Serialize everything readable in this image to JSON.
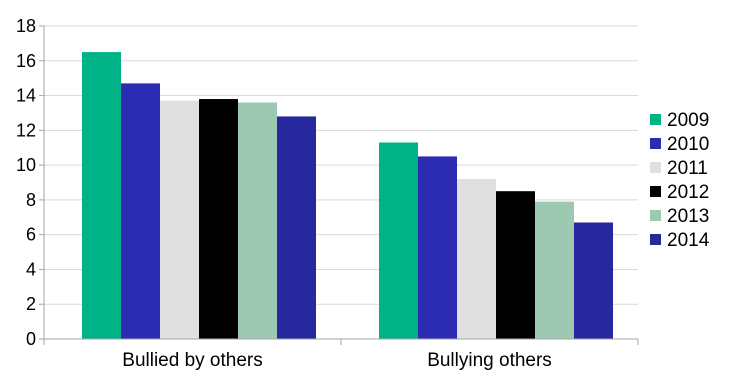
{
  "chart_data": {
    "type": "bar",
    "title": "",
    "xlabel": "",
    "ylabel": "",
    "categories": [
      "Bullied by others",
      "Bullying others"
    ],
    "series": [
      {
        "name": "2009",
        "color": "#00b386",
        "values": [
          16.5,
          11.3
        ]
      },
      {
        "name": "2010",
        "color": "#2b2bb3",
        "values": [
          14.7,
          10.5
        ]
      },
      {
        "name": "2011",
        "color": "#e0e0e0",
        "values": [
          13.7,
          9.2
        ]
      },
      {
        "name": "2012",
        "color": "#000000",
        "values": [
          13.8,
          8.5
        ]
      },
      {
        "name": "2013",
        "color": "#9dc9b2",
        "values": [
          13.6,
          7.9
        ]
      },
      {
        "name": "2014",
        "color": "#27279e",
        "values": [
          12.8,
          6.7
        ]
      }
    ],
    "ylim": [
      0,
      18
    ],
    "yticks": [
      0,
      2,
      4,
      6,
      8,
      10,
      12,
      14,
      16,
      18
    ],
    "grid": true,
    "legend": "right"
  }
}
